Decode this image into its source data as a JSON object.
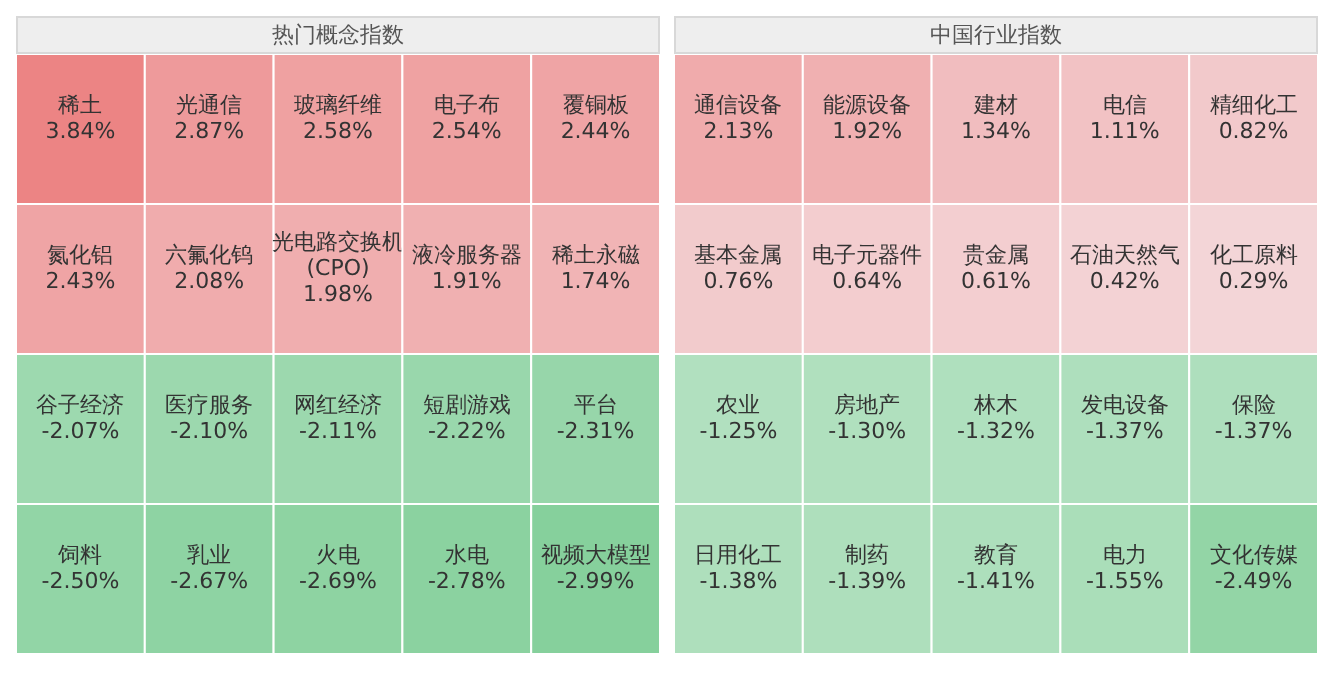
{
  "chart_data": [
    {
      "type": "other",
      "title": "热门概念指数",
      "categories": [
        "稀土",
        "光通信",
        "玻璃纤维",
        "电子布",
        "覆铜板",
        "氮化铝",
        "六氟化钨",
        "光电路交换机(CPO)",
        "液冷服务器",
        "稀土永磁",
        "谷子经济",
        "医疗服务",
        "网红经济",
        "短剧游戏",
        "平台",
        "饲料",
        "乳业",
        "火电",
        "水电",
        "视频大模型"
      ],
      "values": [
        3.84,
        2.87,
        2.58,
        2.54,
        2.44,
        2.43,
        2.08,
        1.98,
        1.91,
        1.74,
        -2.07,
        -2.1,
        -2.11,
        -2.22,
        -2.31,
        -2.5,
        -2.67,
        -2.69,
        -2.78,
        -2.99
      ],
      "value_labels": [
        "3.84%",
        "2.87%",
        "2.58%",
        "2.54%",
        "2.44%",
        "2.43%",
        "2.08%",
        "1.98%",
        "1.91%",
        "1.74%",
        "-2.07%",
        "-2.10%",
        "-2.11%",
        "-2.22%",
        "-2.31%",
        "-2.50%",
        "-2.67%",
        "-2.69%",
        "-2.78%",
        "-2.99%"
      ]
    },
    {
      "type": "other",
      "title": "中国行业指数",
      "categories": [
        "通信设备",
        "能源设备",
        "建材",
        "电信",
        "精细化工",
        "基本金属",
        "电子元器件",
        "贵金属",
        "石油天然气",
        "化工原料",
        "农业",
        "房地产",
        "林木",
        "发电设备",
        "保险",
        "日用化工",
        "制药",
        "教育",
        "电力",
        "文化传媒"
      ],
      "values": [
        2.13,
        1.92,
        1.34,
        1.11,
        0.82,
        0.76,
        0.64,
        0.61,
        0.42,
        0.29,
        -1.25,
        -1.3,
        -1.32,
        -1.37,
        -1.37,
        -1.38,
        -1.39,
        -1.41,
        -1.55,
        -2.49
      ],
      "value_labels": [
        "2.13%",
        "1.92%",
        "1.34%",
        "1.11%",
        "0.82%",
        "0.76%",
        "0.64%",
        "0.61%",
        "0.42%",
        "0.29%",
        "-1.25%",
        "-1.30%",
        "-1.32%",
        "-1.37%",
        "-1.37%",
        "-1.38%",
        "-1.39%",
        "-1.41%",
        "-1.55%",
        "-2.49%"
      ]
    }
  ]
}
